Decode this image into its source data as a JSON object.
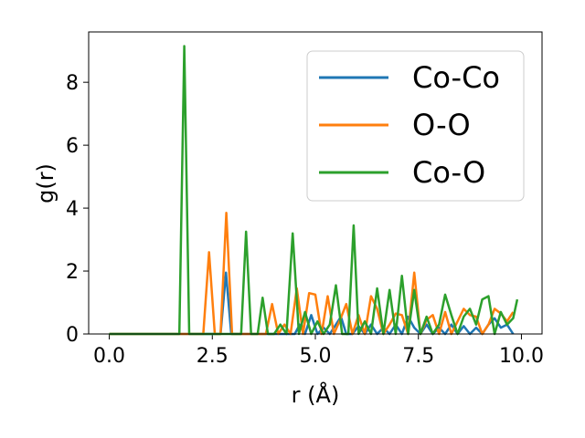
{
  "chart_data": {
    "type": "line",
    "xlabel": "r (Å)",
    "ylabel": "g(r)",
    "xlim": [
      -0.5,
      10.5
    ],
    "ylim": [
      0,
      9.6
    ],
    "xticks": [
      "0.0",
      "2.5",
      "5.0",
      "7.5",
      "10.0"
    ],
    "yticks": [
      "0",
      "2",
      "4",
      "6",
      "8"
    ],
    "grid": false,
    "legend_position": "top-right",
    "series": [
      {
        "name": "Co-Co",
        "color": "#1f77b4",
        "x": [
          0,
          2.7,
          2.83,
          2.96,
          4.5,
          4.62,
          4.75,
          4.9,
          5.05,
          5.2,
          5.35,
          5.5,
          5.62,
          5.75,
          5.9,
          6.05,
          6.2,
          6.35,
          6.5,
          6.65,
          6.8,
          6.95,
          7.1,
          7.25,
          7.4,
          7.55,
          7.7,
          7.85,
          8.0,
          8.15,
          8.3,
          8.45,
          8.6,
          8.75,
          8.9,
          9.05,
          9.2,
          9.35,
          9.5,
          9.65,
          9.8
        ],
        "y": [
          0,
          0,
          1.95,
          0,
          0,
          0.3,
          0,
          0.6,
          0,
          0.2,
          0,
          0.3,
          0.55,
          0,
          0,
          0.25,
          0,
          0.3,
          0,
          0.2,
          0,
          0.3,
          0,
          0.55,
          0.2,
          0,
          0.3,
          0,
          0.2,
          0,
          0.3,
          0,
          0.25,
          0,
          0.2,
          0,
          0.3,
          0.5,
          0.2,
          0.3,
          0
        ],
        "points": [
          [
            0,
            0
          ],
          [
            2.7,
            0
          ],
          [
            2.83,
            1.95
          ],
          [
            2.96,
            0
          ],
          [
            4.5,
            0
          ],
          [
            4.62,
            0.3
          ],
          [
            4.75,
            0
          ],
          [
            4.9,
            0.6
          ],
          [
            5.05,
            0
          ],
          [
            5.2,
            0.2
          ],
          [
            5.35,
            0
          ],
          [
            5.5,
            0.3
          ],
          [
            5.62,
            0.55
          ],
          [
            5.75,
            0
          ],
          [
            5.9,
            0
          ],
          [
            6.05,
            0.25
          ],
          [
            6.2,
            0
          ],
          [
            6.35,
            0.3
          ],
          [
            6.5,
            0
          ],
          [
            6.65,
            0.2
          ],
          [
            6.8,
            0
          ],
          [
            6.95,
            0.3
          ],
          [
            7.1,
            0
          ],
          [
            7.25,
            0.55
          ],
          [
            7.4,
            0.2
          ],
          [
            7.55,
            0
          ],
          [
            7.7,
            0.3
          ],
          [
            7.85,
            0
          ],
          [
            8.0,
            0.2
          ],
          [
            8.15,
            0
          ],
          [
            8.3,
            0.3
          ],
          [
            8.45,
            0
          ],
          [
            8.6,
            0.25
          ],
          [
            8.75,
            0
          ],
          [
            8.9,
            0.2
          ],
          [
            9.05,
            0
          ],
          [
            9.2,
            0.3
          ],
          [
            9.35,
            0.5
          ],
          [
            9.5,
            0.2
          ],
          [
            9.65,
            0.3
          ],
          [
            9.8,
            0
          ]
        ]
      },
      {
        "name": "O-O",
        "color": "#ff7f0e",
        "x": [
          0,
          2.28,
          2.42,
          2.56,
          2.7,
          2.84,
          2.98,
          3.8,
          3.95,
          4.1,
          4.25,
          4.4,
          4.55,
          4.7,
          4.85,
          5.0,
          5.15,
          5.3,
          5.45,
          5.6,
          5.75,
          5.9,
          6.05,
          6.2,
          6.35,
          6.5,
          6.65,
          6.8,
          6.95,
          7.1,
          7.25,
          7.4,
          7.55,
          7.7,
          7.85,
          8.0,
          8.15,
          8.3,
          8.45,
          8.6,
          8.75,
          8.9,
          9.05,
          9.2,
          9.35,
          9.5,
          9.65,
          9.8
        ],
        "y": [
          0,
          0,
          2.6,
          0,
          0,
          3.85,
          0,
          0,
          0.95,
          0,
          0.3,
          0,
          1.45,
          0,
          1.3,
          1.25,
          0,
          1.2,
          0,
          0.45,
          0.95,
          0,
          0.6,
          0,
          1.2,
          0.8,
          0,
          0.3,
          0.65,
          0.6,
          0,
          1.95,
          0,
          0.45,
          0.6,
          0,
          0.7,
          0,
          0.4,
          0.8,
          0.6,
          0.55,
          0,
          0.3,
          0.8,
          0.65,
          0.4,
          0.7
        ],
        "points": [
          [
            0,
            0
          ],
          [
            2.28,
            0
          ],
          [
            2.42,
            2.6
          ],
          [
            2.56,
            0
          ],
          [
            2.7,
            0
          ],
          [
            2.84,
            3.85
          ],
          [
            2.98,
            0
          ],
          [
            3.8,
            0
          ],
          [
            3.95,
            0.95
          ],
          [
            4.1,
            0
          ],
          [
            4.25,
            0.3
          ],
          [
            4.4,
            0
          ],
          [
            4.55,
            1.45
          ],
          [
            4.7,
            0
          ],
          [
            4.85,
            1.3
          ],
          [
            5.0,
            1.25
          ],
          [
            5.15,
            0
          ],
          [
            5.3,
            1.2
          ],
          [
            5.45,
            0
          ],
          [
            5.6,
            0.45
          ],
          [
            5.75,
            0.95
          ],
          [
            5.9,
            0
          ],
          [
            6.05,
            0.6
          ],
          [
            6.2,
            0
          ],
          [
            6.35,
            1.2
          ],
          [
            6.5,
            0.8
          ],
          [
            6.65,
            0
          ],
          [
            6.8,
            0.3
          ],
          [
            6.95,
            0.65
          ],
          [
            7.1,
            0.6
          ],
          [
            7.25,
            0
          ],
          [
            7.4,
            1.95
          ],
          [
            7.55,
            0
          ],
          [
            7.7,
            0.45
          ],
          [
            7.85,
            0.6
          ],
          [
            8.0,
            0
          ],
          [
            8.15,
            0.7
          ],
          [
            8.3,
            0
          ],
          [
            8.45,
            0.4
          ],
          [
            8.6,
            0.8
          ],
          [
            8.75,
            0.6
          ],
          [
            8.9,
            0.55
          ],
          [
            9.05,
            0
          ],
          [
            9.2,
            0.3
          ],
          [
            9.35,
            0.8
          ],
          [
            9.5,
            0.65
          ],
          [
            9.65,
            0.4
          ],
          [
            9.8,
            0.7
          ]
        ]
      },
      {
        "name": "Co-O",
        "color": "#2ca02c",
        "x": [
          0,
          1.7,
          1.82,
          1.94,
          3.2,
          3.32,
          3.44,
          3.6,
          3.72,
          3.85,
          4.0,
          4.15,
          4.3,
          4.45,
          4.6,
          4.75,
          4.9,
          5.05,
          5.2,
          5.35,
          5.5,
          5.65,
          5.8,
          5.93,
          6.05,
          6.2,
          6.35,
          6.5,
          6.65,
          6.8,
          6.95,
          7.1,
          7.25,
          7.4,
          7.55,
          7.7,
          7.85,
          8.0,
          8.15,
          8.3,
          8.45,
          8.6,
          8.75,
          8.9,
          9.05,
          9.2,
          9.35,
          9.5,
          9.65,
          9.8,
          9.9
        ],
        "y": [
          0,
          0,
          9.15,
          0,
          0,
          3.25,
          0,
          0,
          1.15,
          0,
          0,
          0.3,
          0,
          3.2,
          0,
          0.7,
          0,
          0.4,
          0,
          0.3,
          1.55,
          0,
          0,
          3.45,
          0,
          0.4,
          0,
          1.45,
          0,
          1.4,
          0,
          1.85,
          0,
          1.4,
          0,
          0.55,
          0,
          0.3,
          1.25,
          0.6,
          0,
          0.55,
          0.8,
          0.3,
          1.1,
          1.2,
          0,
          0.7,
          0.3,
          0.5,
          1.1
        ],
        "points": [
          [
            0,
            0
          ],
          [
            1.7,
            0
          ],
          [
            1.82,
            9.15
          ],
          [
            1.94,
            0
          ],
          [
            3.2,
            0
          ],
          [
            3.32,
            3.25
          ],
          [
            3.44,
            0
          ],
          [
            3.6,
            0
          ],
          [
            3.72,
            1.15
          ],
          [
            3.85,
            0
          ],
          [
            4.0,
            0
          ],
          [
            4.15,
            0.3
          ],
          [
            4.3,
            0
          ],
          [
            4.45,
            3.2
          ],
          [
            4.6,
            0
          ],
          [
            4.75,
            0.7
          ],
          [
            4.9,
            0
          ],
          [
            5.05,
            0.4
          ],
          [
            5.2,
            0
          ],
          [
            5.35,
            0.3
          ],
          [
            5.5,
            1.55
          ],
          [
            5.65,
            0
          ],
          [
            5.8,
            0
          ],
          [
            5.93,
            3.45
          ],
          [
            6.05,
            0
          ],
          [
            6.2,
            0.4
          ],
          [
            6.35,
            0
          ],
          [
            6.5,
            1.45
          ],
          [
            6.65,
            0
          ],
          [
            6.8,
            1.4
          ],
          [
            6.95,
            0
          ],
          [
            7.1,
            1.85
          ],
          [
            7.25,
            0
          ],
          [
            7.4,
            1.4
          ],
          [
            7.55,
            0
          ],
          [
            7.7,
            0.55
          ],
          [
            7.85,
            0
          ],
          [
            8.0,
            0.3
          ],
          [
            8.15,
            1.25
          ],
          [
            8.3,
            0.6
          ],
          [
            8.45,
            0
          ],
          [
            8.6,
            0.55
          ],
          [
            8.75,
            0.8
          ],
          [
            8.9,
            0.3
          ],
          [
            9.05,
            1.1
          ],
          [
            9.2,
            1.2
          ],
          [
            9.35,
            0
          ],
          [
            9.5,
            0.7
          ],
          [
            9.65,
            0.3
          ],
          [
            9.8,
            0.5
          ],
          [
            9.9,
            1.1
          ]
        ]
      }
    ]
  }
}
